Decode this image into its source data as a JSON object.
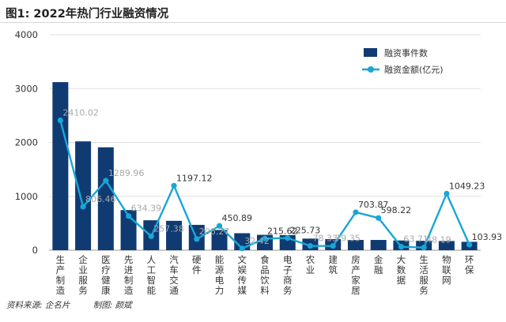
{
  "title": "图1: 2022年热门行业融资情况",
  "footer": {
    "source": "资料来源: 企名片",
    "author": "制图: 颜斌"
  },
  "colors": {
    "bar": "#0f3b72",
    "line": "#19a6d6",
    "grid": "#e2e2e2",
    "axis": "#9a9a9a",
    "label": "#333333",
    "label_faint": "#a9a9a9"
  },
  "chart_data": {
    "type": "bar",
    "categories": [
      "生产制造",
      "企业服务",
      "医疗健康",
      "先进制造",
      "人工智能",
      "汽车交通",
      "硬件",
      "能源电力",
      "文娱传媒",
      "食品饮料",
      "电子商务",
      "农业",
      "建筑",
      "房产家居",
      "金融",
      "大数据",
      "生活服务",
      "物联网",
      "环保"
    ],
    "ylim": [
      0,
      4000
    ],
    "yticks": [
      0,
      1000,
      2000,
      3000,
      4000
    ],
    "grid": true,
    "legend_position": "top-right",
    "series": [
      {
        "name": "融资事件数",
        "type": "bar",
        "values": [
          3120,
          2020,
          1910,
          745,
          555,
          545,
          470,
          375,
          315,
          285,
          280,
          215,
          205,
          190,
          190,
          180,
          175,
          170,
          155
        ]
      },
      {
        "name": "融资金额(亿元)",
        "type": "line",
        "values": [
          2410.02,
          806.46,
          1289.96,
          634.39,
          257.38,
          1197.12,
          206.27,
          450.89,
          32.42,
          215.62,
          225.73,
          78.33,
          79.35,
          703.87,
          598.22,
          63.71,
          48.19,
          1049.23,
          103.93
        ],
        "labels": [
          "2410.02",
          "806.46",
          "1289.96",
          "634.39",
          "257.38",
          "1197.12",
          "206.27",
          "450.89",
          "32.42",
          "215.62",
          "225.73",
          "78.33",
          "79.35",
          "703.87",
          "598.22",
          "63.71",
          "48.19",
          "1049.23",
          "103.93"
        ]
      }
    ]
  }
}
